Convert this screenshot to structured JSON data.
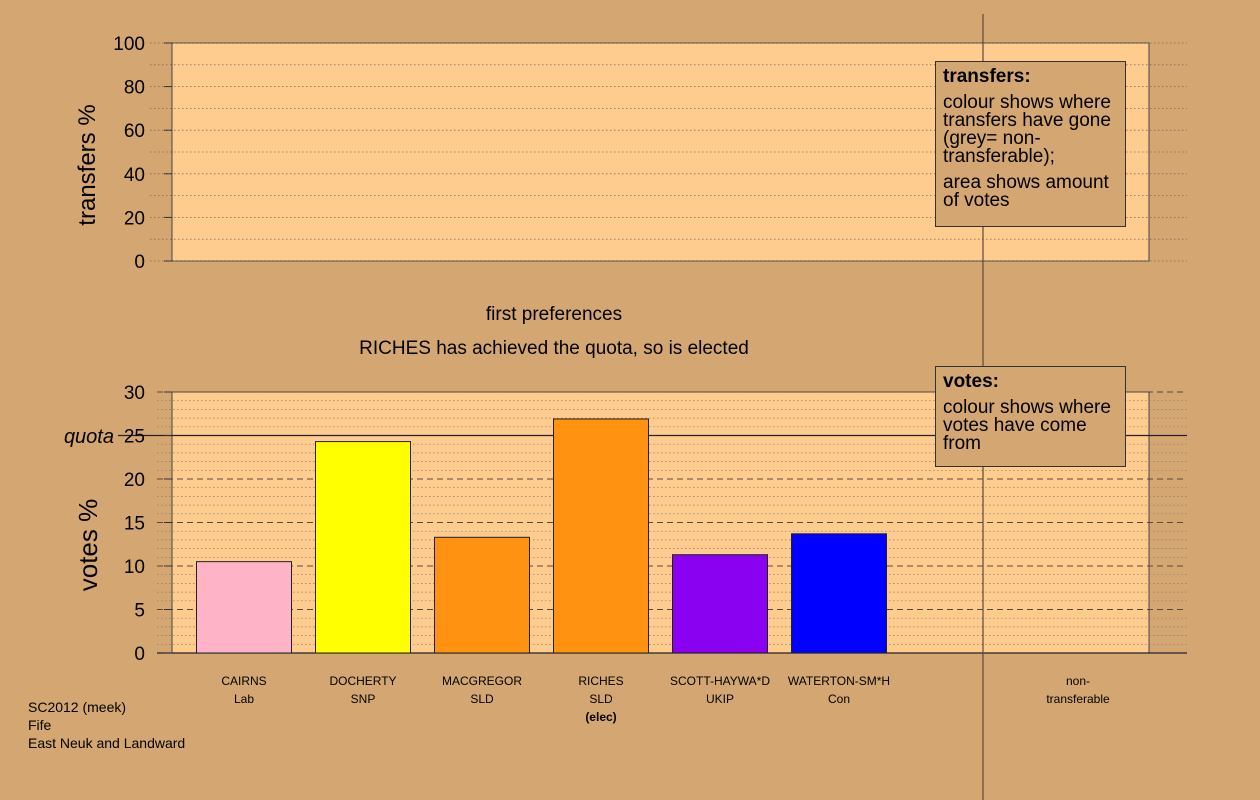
{
  "chart_data": [
    {
      "type": "area",
      "ylabel": "transfers %",
      "ylim": [
        0,
        100
      ],
      "yticks": [
        0,
        20,
        40,
        60,
        80,
        100
      ],
      "series": [],
      "legend": {
        "title": "transfers:",
        "lines": [
          "colour shows where transfers have gone (grey= non-transferable);",
          "area shows amount of votes"
        ]
      }
    },
    {
      "type": "bar",
      "title": "first preferences",
      "subtitle": "RICHES has achieved the quota, so is elected",
      "ylabel": "votes %",
      "ylim": [
        0,
        30
      ],
      "yticks": [
        0,
        5,
        10,
        15,
        20,
        25,
        30
      ],
      "quota": 25,
      "quota_label": "quota",
      "categories": [
        "CAIRNS",
        "DOCHERTY",
        "MACGREGOR",
        "RICHES",
        "SCOTT-HAYWA*D",
        "WATERTON-SM*H"
      ],
      "parties": [
        "Lab",
        "SNP",
        "SLD",
        "SLD",
        "UKIP",
        "Con"
      ],
      "notes": [
        "",
        "",
        "",
        "(elec)",
        "",
        ""
      ],
      "values": [
        10.5,
        24.3,
        13.3,
        26.9,
        11.3,
        13.7
      ],
      "colors": [
        "#ffb3c6",
        "#ffff00",
        "#ff9210",
        "#ff9210",
        "#8a00f0",
        "#0000ff"
      ],
      "extra_category": [
        "non-",
        "transferable"
      ],
      "legend": {
        "title": "votes:",
        "lines": [
          "colour shows where votes have come from"
        ]
      }
    }
  ],
  "footer": {
    "line1": "SC2012 (meek)",
    "line2": "Fife",
    "line3": "East Neuk and Landward"
  }
}
